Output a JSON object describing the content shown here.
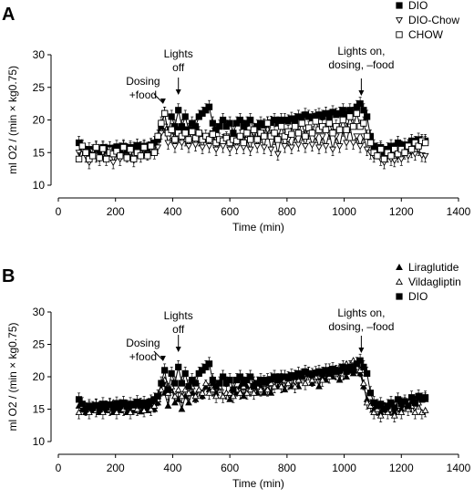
{
  "chart_data": [
    {
      "panel_label": "A",
      "type": "line",
      "xlabel": "Time (min)",
      "ylabel": "ml O2 / (min × kg0.75)",
      "xlim": [
        0,
        1400
      ],
      "ylim": [
        10,
        30
      ],
      "xticks": [
        0,
        200,
        400,
        600,
        800,
        1000,
        1200,
        1400
      ],
      "yticks": [
        10,
        15,
        20,
        25,
        30
      ],
      "grid": false,
      "legend_position": "top-right",
      "x": [
        72,
        84,
        96,
        108,
        120,
        132,
        144,
        156,
        168,
        180,
        192,
        204,
        216,
        228,
        240,
        252,
        264,
        276,
        288,
        300,
        312,
        324,
        336,
        348,
        360,
        372,
        384,
        396,
        408,
        420,
        432,
        444,
        456,
        468,
        480,
        492,
        504,
        516,
        528,
        540,
        552,
        564,
        576,
        588,
        600,
        612,
        624,
        636,
        648,
        660,
        672,
        684,
        696,
        708,
        720,
        732,
        744,
        756,
        768,
        780,
        792,
        804,
        816,
        828,
        840,
        852,
        864,
        876,
        888,
        900,
        912,
        924,
        936,
        948,
        960,
        972,
        984,
        996,
        1008,
        1020,
        1032,
        1044,
        1056,
        1068,
        1080,
        1092,
        1104,
        1116,
        1128,
        1140,
        1152,
        1164,
        1176,
        1188,
        1200,
        1212,
        1224,
        1236,
        1248,
        1260,
        1272,
        1284
      ],
      "series": [
        {
          "name": "DIO",
          "marker": "square-filled",
          "values": [
            16.5,
            15.8,
            15.0,
            15.5,
            15.2,
            15.6,
            15.0,
            15.8,
            15.3,
            15.7,
            15.2,
            15.9,
            15.5,
            16.0,
            15.4,
            15.8,
            15.6,
            16.1,
            15.7,
            16.0,
            15.6,
            16.2,
            16.5,
            17.0,
            19.0,
            21.0,
            18.0,
            20.5,
            19.0,
            21.5,
            19.0,
            20.5,
            18.5,
            19.5,
            19.0,
            20.5,
            21.0,
            21.5,
            22.0,
            19.5,
            18.5,
            19.0,
            20.0,
            19.0,
            19.5,
            18.0,
            19.5,
            20.0,
            19.0,
            19.5,
            20.0,
            18.5,
            19.0,
            19.5,
            19.2,
            19.5,
            19.6,
            20.0,
            19.5,
            20.0,
            20.0,
            19.8,
            20.2,
            20.0,
            20.5,
            20.2,
            20.8,
            20.5,
            20.3,
            20.6,
            20.8,
            20.5,
            21.0,
            20.5,
            21.2,
            20.8,
            21.0,
            21.5,
            20.8,
            21.5,
            21.0,
            22.0,
            22.5,
            21.5,
            20.5,
            17.5,
            16.0,
            15.5,
            15.8,
            15.0,
            15.5,
            16.0,
            15.2,
            16.5,
            15.8,
            16.2,
            15.5,
            16.8,
            16.0,
            17.0,
            16.5,
            16.8
          ]
        },
        {
          "name": "DIO-Chow",
          "marker": "triangle-down-open",
          "values": [
            15.0,
            15.5,
            14.5,
            13.5,
            15.2,
            14.5,
            14.0,
            15.0,
            14.0,
            15.5,
            13.5,
            15.0,
            14.0,
            15.5,
            14.5,
            15.0,
            13.8,
            15.2,
            14.5,
            15.5,
            14.8,
            15.5,
            15.0,
            15.8,
            18.0,
            19.0,
            16.5,
            17.5,
            16.0,
            17.5,
            16.5,
            17.0,
            16.0,
            17.5,
            16.2,
            17.0,
            15.8,
            17.5,
            16.0,
            18.0,
            15.5,
            17.0,
            16.0,
            17.5,
            15.5,
            17.0,
            15.8,
            17.5,
            15.8,
            17.0,
            15.5,
            18.0,
            16.0,
            17.5,
            15.8,
            18.5,
            15.5,
            17.2,
            14.8,
            17.5,
            16.0,
            17.0,
            15.8,
            17.5,
            16.2,
            17.8,
            16.0,
            18.0,
            16.2,
            17.5,
            15.8,
            17.5,
            16.0,
            18.0,
            15.5,
            17.5,
            16.0,
            18.5,
            16.5,
            19.0,
            16.5,
            17.5,
            16.0,
            17.5,
            15.5,
            15.0,
            14.5,
            15.0,
            14.0,
            13.5,
            14.5,
            14.0,
            13.8,
            14.5,
            14.0,
            15.0,
            14.5,
            15.2,
            14.8,
            15.5,
            14.6,
            14.5
          ]
        },
        {
          "name": "CHOW",
          "marker": "square-open",
          "values": [
            14.0,
            16.0,
            15.0,
            14.0,
            14.5,
            15.8,
            14.2,
            15.6,
            14.0,
            15.0,
            14.8,
            15.2,
            14.5,
            15.8,
            14.2,
            15.5,
            14.0,
            15.0,
            14.5,
            15.8,
            14.5,
            16.0,
            15.0,
            17.5,
            19.5,
            21.0,
            18.0,
            18.5,
            17.0,
            18.0,
            17.5,
            18.0,
            17.0,
            18.2,
            17.2,
            18.0,
            17.0,
            17.5,
            17.0,
            17.8,
            16.5,
            17.0,
            16.8,
            17.2,
            16.5,
            17.0,
            16.8,
            17.5,
            16.5,
            18.0,
            17.0,
            18.5,
            17.0,
            18.0,
            17.5,
            19.5,
            17.5,
            18.0,
            17.0,
            19.0,
            17.5,
            18.2,
            17.8,
            19.0,
            18.0,
            19.5,
            17.5,
            18.8,
            18.0,
            19.8,
            18.5,
            19.0,
            18.5,
            19.5,
            18.0,
            19.0,
            18.5,
            20.0,
            18.5,
            20.5,
            19.0,
            21.0,
            19.0,
            19.5,
            17.5,
            16.5,
            15.0,
            14.5,
            15.5,
            14.0,
            15.0,
            14.5,
            15.5,
            14.8,
            15.5,
            15.0,
            16.0,
            15.5,
            16.5,
            16.0,
            16.8,
            16.5
          ]
        }
      ],
      "annotations": [
        {
          "lines": [
            "Dosing",
            "+food"
          ],
          "x": 360
        },
        {
          "lines": [
            "Lights",
            "off"
          ],
          "x": 420
        },
        {
          "lines": [
            "Lights on,",
            "dosing, –food"
          ],
          "x": 1060
        }
      ]
    },
    {
      "panel_label": "B",
      "type": "line",
      "xlabel": "Time (min)",
      "ylabel": "ml O2 / (min × kg0.75)",
      "xlim": [
        0,
        1400
      ],
      "ylim": [
        10,
        30
      ],
      "xticks": [
        0,
        200,
        400,
        600,
        800,
        1000,
        1200,
        1400
      ],
      "yticks": [
        10,
        15,
        20,
        25,
        30
      ],
      "grid": false,
      "legend_position": "top-right",
      "x": [
        72,
        84,
        96,
        108,
        120,
        132,
        144,
        156,
        168,
        180,
        192,
        204,
        216,
        228,
        240,
        252,
        264,
        276,
        288,
        300,
        312,
        324,
        336,
        348,
        360,
        372,
        384,
        396,
        408,
        420,
        432,
        444,
        456,
        468,
        480,
        492,
        504,
        516,
        528,
        540,
        552,
        564,
        576,
        588,
        600,
        612,
        624,
        636,
        648,
        660,
        672,
        684,
        696,
        708,
        720,
        732,
        744,
        756,
        768,
        780,
        792,
        804,
        816,
        828,
        840,
        852,
        864,
        876,
        888,
        900,
        912,
        924,
        936,
        948,
        960,
        972,
        984,
        996,
        1008,
        1020,
        1032,
        1044,
        1056,
        1068,
        1080,
        1092,
        1104,
        1116,
        1128,
        1140,
        1152,
        1164,
        1176,
        1188,
        1200,
        1212,
        1224,
        1236,
        1248,
        1260,
        1272,
        1284
      ],
      "series": [
        {
          "name": "Liraglutide",
          "marker": "triangle-up-filled",
          "values": [
            15.5,
            15.0,
            14.5,
            15.2,
            14.8,
            15.5,
            14.5,
            15.2,
            14.8,
            15.5,
            14.5,
            15.0,
            14.8,
            15.2,
            14.5,
            15.0,
            14.8,
            15.5,
            14.6,
            15.2,
            14.8,
            15.5,
            15.0,
            16.0,
            18.0,
            17.5,
            15.5,
            18.5,
            16.0,
            16.5,
            15.0,
            17.0,
            16.0,
            17.5,
            16.5,
            18.0,
            17.0,
            18.5,
            18.0,
            19.0,
            17.5,
            18.5,
            17.0,
            17.5,
            16.5,
            18.0,
            17.5,
            18.5,
            17.0,
            18.5,
            18.0,
            19.0,
            17.5,
            18.5,
            17.5,
            19.0,
            17.5,
            18.5,
            18.5,
            19.5,
            18.0,
            19.0,
            18.5,
            20.0,
            18.5,
            20.0,
            19.0,
            20.5,
            19.0,
            20.0,
            18.5,
            20.0,
            19.5,
            21.0,
            20.0,
            20.5,
            19.5,
            21.0,
            20.0,
            21.5,
            20.5,
            22.0,
            20.5,
            18.5,
            16.5,
            15.5,
            15.0,
            15.5,
            14.5,
            15.0,
            14.8,
            15.2,
            14.5,
            15.5,
            15.0,
            15.8,
            15.5,
            16.0,
            15.8,
            16.5,
            16.5,
            16.5
          ]
        },
        {
          "name": "Vildagliptin",
          "marker": "triangle-up-open",
          "values": [
            14.5,
            15.5,
            15.0,
            14.5,
            15.5,
            14.8,
            15.8,
            14.5,
            15.5,
            15.0,
            16.0,
            14.5,
            15.5,
            15.0,
            15.8,
            14.5,
            15.2,
            15.0,
            15.5,
            14.8,
            15.5,
            15.0,
            15.5,
            16.5,
            18.0,
            19.5,
            17.5,
            18.5,
            17.0,
            18.0,
            17.0,
            18.0,
            17.5,
            18.5,
            17.0,
            18.0,
            17.5,
            19.0,
            17.5,
            18.0,
            17.0,
            18.5,
            17.0,
            17.5,
            17.5,
            17.0,
            18.0,
            17.5,
            18.5,
            17.5,
            18.0,
            17.5,
            18.5,
            18.0,
            19.0,
            18.0,
            19.0,
            18.5,
            19.5,
            18.5,
            19.5,
            19.0,
            20.0,
            18.5,
            19.5,
            20.0,
            19.0,
            20.5,
            19.5,
            20.0,
            20.5,
            19.5,
            21.0,
            20.0,
            21.0,
            20.5,
            21.5,
            20.5,
            22.0,
            21.5,
            22.5,
            21.5,
            21.0,
            19.0,
            16.0,
            15.5,
            14.5,
            15.0,
            14.0,
            15.5,
            14.5,
            15.0,
            14.0,
            15.5,
            14.5,
            15.8,
            15.0,
            15.5,
            14.5,
            16.0,
            14.5,
            14.8
          ]
        },
        {
          "name": "DIO",
          "marker": "square-filled",
          "values": [
            16.5,
            15.8,
            15.0,
            15.5,
            15.2,
            15.6,
            15.0,
            15.8,
            15.3,
            15.7,
            15.2,
            15.9,
            15.5,
            16.0,
            15.4,
            15.8,
            15.6,
            16.1,
            15.7,
            16.0,
            15.6,
            16.2,
            16.5,
            17.0,
            19.0,
            21.0,
            18.0,
            20.5,
            19.0,
            21.5,
            19.0,
            20.5,
            18.5,
            19.5,
            19.0,
            20.5,
            21.0,
            21.5,
            22.0,
            19.5,
            18.5,
            19.0,
            20.0,
            19.0,
            19.5,
            18.0,
            19.5,
            20.0,
            19.0,
            19.5,
            20.0,
            18.5,
            19.0,
            19.5,
            19.2,
            19.5,
            19.6,
            20.0,
            19.5,
            20.0,
            20.0,
            19.8,
            20.2,
            20.0,
            20.5,
            20.2,
            20.8,
            20.5,
            20.3,
            20.6,
            20.8,
            20.5,
            21.0,
            20.5,
            21.2,
            20.8,
            21.0,
            21.5,
            20.8,
            21.5,
            21.0,
            22.0,
            22.5,
            21.5,
            20.5,
            17.5,
            16.0,
            15.5,
            15.8,
            15.0,
            15.5,
            16.0,
            15.2,
            16.5,
            15.8,
            16.2,
            15.5,
            16.8,
            16.0,
            17.0,
            16.5,
            16.8
          ]
        }
      ],
      "annotations": [
        {
          "lines": [
            "Dosing",
            "+food"
          ],
          "x": 360
        },
        {
          "lines": [
            "Lights",
            "off"
          ],
          "x": 420
        },
        {
          "lines": [
            "Lights on,",
            "dosing, –food"
          ],
          "x": 1060
        }
      ]
    }
  ]
}
